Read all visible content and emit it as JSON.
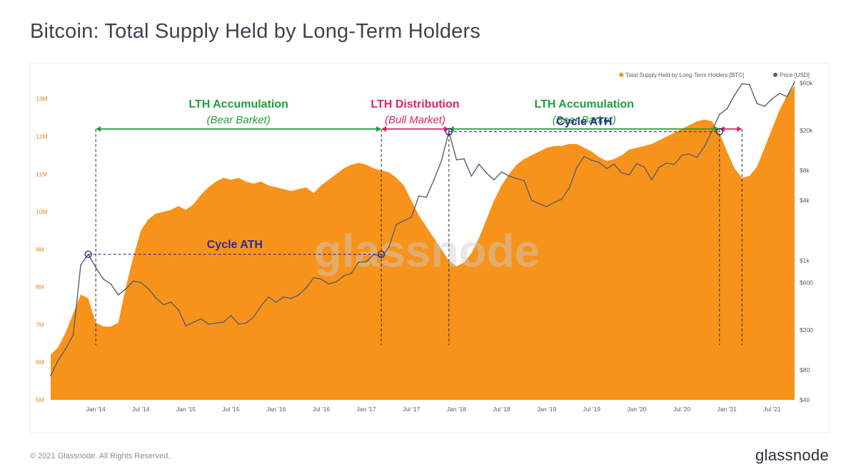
{
  "header": {
    "title": "Bitcoin: Total Supply Held by Long-Term Holders"
  },
  "footer": {
    "copyright": "© 2021 Glassnode. All Rights Reserved.",
    "brand": "glassnode"
  },
  "colors": {
    "lth_fill": "#f7931a",
    "price_line": "#5a5f6a",
    "accumulation": "#1f9e3a",
    "distribution": "#e0245e",
    "ath": "#2b2f8f",
    "watermark": "#c9ccd3"
  },
  "chart_data": {
    "type": "area",
    "watermark": "glassnode",
    "legend": {
      "position": "top-right",
      "items": [
        {
          "label": "Total Supply Held by Long-Term Holders [BTC]",
          "color": "#f7931a"
        },
        {
          "label": "Price [USD]",
          "color": "#5a5f6a"
        }
      ]
    },
    "x_ticks": [
      "Jan '14",
      "Jul '14",
      "Jan '15",
      "Jul '15",
      "Jan '16",
      "Jul '16",
      "Jan '17",
      "Jul '17",
      "Jan '18",
      "Jul '18",
      "Jan '19",
      "Jul '19",
      "Jan '20",
      "Jul '20",
      "Jan '21",
      "Jul '21"
    ],
    "x_range": [
      "2013-07",
      "2021-10"
    ],
    "y_left": {
      "ticks": [
        "5M",
        "6M",
        "7M",
        "8M",
        "9M",
        "10M",
        "11M",
        "12M",
        "13M"
      ],
      "range": [
        5000000,
        13600000
      ]
    },
    "y_right": {
      "scale": "log",
      "ticks": [
        "$40",
        "$80",
        "$200",
        "$600",
        "$1k",
        "$4k",
        "$8k",
        "$20k",
        "$60k"
      ],
      "range": [
        40,
        70000
      ]
    },
    "series": [
      {
        "name": "Total Supply Held by Long-Term Holders [BTC]",
        "unit": "BTC",
        "points": [
          [
            "2013-07",
            6200000
          ],
          [
            "2013-08",
            6400000
          ],
          [
            "2013-09",
            6800000
          ],
          [
            "2013-10",
            7300000
          ],
          [
            "2013-11",
            7800000
          ],
          [
            "2013-12",
            7700000
          ],
          [
            "2014-01",
            7050000
          ],
          [
            "2014-02",
            6950000
          ],
          [
            "2014-03",
            6950000
          ],
          [
            "2014-04",
            7050000
          ],
          [
            "2014-05",
            8000000
          ],
          [
            "2014-06",
            8800000
          ],
          [
            "2014-07",
            9500000
          ],
          [
            "2014-08",
            9800000
          ],
          [
            "2014-09",
            9950000
          ],
          [
            "2014-10",
            10000000
          ],
          [
            "2014-11",
            10050000
          ],
          [
            "2014-12",
            10150000
          ],
          [
            "2015-01",
            10050000
          ],
          [
            "2015-02",
            10200000
          ],
          [
            "2015-03",
            10450000
          ],
          [
            "2015-04",
            10650000
          ],
          [
            "2015-05",
            10800000
          ],
          [
            "2015-06",
            10900000
          ],
          [
            "2015-07",
            10850000
          ],
          [
            "2015-08",
            10900000
          ],
          [
            "2015-09",
            10800000
          ],
          [
            "2015-10",
            10750000
          ],
          [
            "2015-11",
            10800000
          ],
          [
            "2015-12",
            10700000
          ],
          [
            "2016-01",
            10650000
          ],
          [
            "2016-02",
            10600000
          ],
          [
            "2016-03",
            10550000
          ],
          [
            "2016-04",
            10600000
          ],
          [
            "2016-05",
            10650000
          ],
          [
            "2016-06",
            10500000
          ],
          [
            "2016-07",
            10700000
          ],
          [
            "2016-08",
            10850000
          ],
          [
            "2016-09",
            11000000
          ],
          [
            "2016-10",
            11150000
          ],
          [
            "2016-11",
            11250000
          ],
          [
            "2016-12",
            11300000
          ],
          [
            "2017-01",
            11250000
          ],
          [
            "2017-02",
            11150000
          ],
          [
            "2017-03",
            11100000
          ],
          [
            "2017-04",
            11050000
          ],
          [
            "2017-05",
            10900000
          ],
          [
            "2017-06",
            10700000
          ],
          [
            "2017-07",
            10300000
          ],
          [
            "2017-08",
            9900000
          ],
          [
            "2017-09",
            9600000
          ],
          [
            "2017-10",
            9300000
          ],
          [
            "2017-11",
            9000000
          ],
          [
            "2017-12",
            8700000
          ],
          [
            "2018-01",
            8550000
          ],
          [
            "2018-02",
            8650000
          ],
          [
            "2018-03",
            8900000
          ],
          [
            "2018-04",
            9300000
          ],
          [
            "2018-05",
            9800000
          ],
          [
            "2018-06",
            10300000
          ],
          [
            "2018-07",
            10700000
          ],
          [
            "2018-08",
            11000000
          ],
          [
            "2018-09",
            11250000
          ],
          [
            "2018-10",
            11400000
          ],
          [
            "2018-11",
            11500000
          ],
          [
            "2018-12",
            11600000
          ],
          [
            "2019-01",
            11700000
          ],
          [
            "2019-02",
            11750000
          ],
          [
            "2019-03",
            11750000
          ],
          [
            "2019-04",
            11800000
          ],
          [
            "2019-05",
            11800000
          ],
          [
            "2019-06",
            11700000
          ],
          [
            "2019-07",
            11600000
          ],
          [
            "2019-08",
            11450000
          ],
          [
            "2019-09",
            11350000
          ],
          [
            "2019-10",
            11400000
          ],
          [
            "2019-11",
            11500000
          ],
          [
            "2019-12",
            11650000
          ],
          [
            "2020-01",
            11700000
          ],
          [
            "2020-02",
            11750000
          ],
          [
            "2020-03",
            11800000
          ],
          [
            "2020-04",
            11900000
          ],
          [
            "2020-05",
            12000000
          ],
          [
            "2020-06",
            12100000
          ],
          [
            "2020-07",
            12200000
          ],
          [
            "2020-08",
            12300000
          ],
          [
            "2020-09",
            12400000
          ],
          [
            "2020-10",
            12450000
          ],
          [
            "2020-11",
            12400000
          ],
          [
            "2020-12",
            12100000
          ],
          [
            "2021-01",
            11600000
          ],
          [
            "2021-02",
            11150000
          ],
          [
            "2021-03",
            10900000
          ],
          [
            "2021-04",
            10950000
          ],
          [
            "2021-05",
            11200000
          ],
          [
            "2021-06",
            11700000
          ],
          [
            "2021-07",
            12200000
          ],
          [
            "2021-08",
            12700000
          ],
          [
            "2021-09",
            13100000
          ],
          [
            "2021-10",
            13350000
          ]
        ]
      },
      {
        "name": "Price [USD]",
        "unit": "USD",
        "points": [
          [
            "2013-07",
            70
          ],
          [
            "2013-08",
            100
          ],
          [
            "2013-09",
            130
          ],
          [
            "2013-10",
            180
          ],
          [
            "2013-11",
            900
          ],
          [
            "2013-12",
            1150
          ],
          [
            "2014-01",
            850
          ],
          [
            "2014-02",
            650
          ],
          [
            "2014-03",
            580
          ],
          [
            "2014-04",
            450
          ],
          [
            "2014-05",
            520
          ],
          [
            "2014-06",
            620
          ],
          [
            "2014-07",
            600
          ],
          [
            "2014-08",
            520
          ],
          [
            "2014-09",
            420
          ],
          [
            "2014-10",
            360
          ],
          [
            "2014-11",
            380
          ],
          [
            "2014-12",
            320
          ],
          [
            "2015-01",
            220
          ],
          [
            "2015-02",
            240
          ],
          [
            "2015-03",
            260
          ],
          [
            "2015-04",
            230
          ],
          [
            "2015-05",
            235
          ],
          [
            "2015-06",
            240
          ],
          [
            "2015-07",
            280
          ],
          [
            "2015-08",
            230
          ],
          [
            "2015-09",
            235
          ],
          [
            "2015-10",
            270
          ],
          [
            "2015-11",
            350
          ],
          [
            "2015-12",
            430
          ],
          [
            "2016-01",
            380
          ],
          [
            "2016-02",
            430
          ],
          [
            "2016-03",
            415
          ],
          [
            "2016-04",
            450
          ],
          [
            "2016-05",
            530
          ],
          [
            "2016-06",
            670
          ],
          [
            "2016-07",
            650
          ],
          [
            "2016-08",
            580
          ],
          [
            "2016-09",
            610
          ],
          [
            "2016-10",
            700
          ],
          [
            "2016-11",
            740
          ],
          [
            "2016-12",
            960
          ],
          [
            "2017-01",
            970
          ],
          [
            "2017-02",
            1150
          ],
          [
            "2017-03",
            1080
          ],
          [
            "2017-04",
            1350
          ],
          [
            "2017-05",
            2300
          ],
          [
            "2017-06",
            2500
          ],
          [
            "2017-07",
            2700
          ],
          [
            "2017-08",
            4400
          ],
          [
            "2017-09",
            4300
          ],
          [
            "2017-10",
            6400
          ],
          [
            "2017-11",
            9900
          ],
          [
            "2017-12",
            19500
          ],
          [
            "2018-01",
            10200
          ],
          [
            "2018-02",
            10400
          ],
          [
            "2018-03",
            7000
          ],
          [
            "2018-04",
            9200
          ],
          [
            "2018-05",
            7500
          ],
          [
            "2018-06",
            6400
          ],
          [
            "2018-07",
            7700
          ],
          [
            "2018-08",
            7000
          ],
          [
            "2018-09",
            6600
          ],
          [
            "2018-10",
            6300
          ],
          [
            "2018-11",
            4000
          ],
          [
            "2018-12",
            3700
          ],
          [
            "2019-01",
            3450
          ],
          [
            "2019-02",
            3800
          ],
          [
            "2019-03",
            4100
          ],
          [
            "2019-04",
            5300
          ],
          [
            "2019-05",
            8500
          ],
          [
            "2019-06",
            11000
          ],
          [
            "2019-07",
            10100
          ],
          [
            "2019-08",
            9600
          ],
          [
            "2019-09",
            8300
          ],
          [
            "2019-10",
            9200
          ],
          [
            "2019-11",
            7500
          ],
          [
            "2019-12",
            7200
          ],
          [
            "2020-01",
            9350
          ],
          [
            "2020-02",
            8600
          ],
          [
            "2020-03",
            6400
          ],
          [
            "2020-04",
            8600
          ],
          [
            "2020-05",
            9450
          ],
          [
            "2020-06",
            9150
          ],
          [
            "2020-07",
            11300
          ],
          [
            "2020-08",
            11650
          ],
          [
            "2020-09",
            10800
          ],
          [
            "2020-10",
            13800
          ],
          [
            "2020-11",
            19700
          ],
          [
            "2020-12",
            29000
          ],
          [
            "2021-01",
            33100
          ],
          [
            "2021-02",
            45200
          ],
          [
            "2021-03",
            58800
          ],
          [
            "2021-04",
            57800
          ],
          [
            "2021-05",
            37300
          ],
          [
            "2021-06",
            35000
          ],
          [
            "2021-07",
            41500
          ],
          [
            "2021-08",
            47100
          ],
          [
            "2021-09",
            43800
          ],
          [
            "2021-10",
            61300
          ]
        ]
      }
    ],
    "annotations": [
      {
        "type": "range",
        "label": "LTH Accumulation",
        "sublabel": "(Bear Barket)",
        "from": "2014-01",
        "to": "2017-03",
        "color": "#1f9e3a"
      },
      {
        "type": "range",
        "label": "LTH Distribution",
        "sublabel": "(Bull Market)",
        "from": "2017-03",
        "to": "2017-12",
        "color": "#e0245e"
      },
      {
        "type": "range",
        "label": "LTH Accumulation",
        "sublabel": "(Bear Barket)",
        "from": "2017-12",
        "to": "2020-12",
        "color": "#1f9e3a"
      },
      {
        "type": "range",
        "label": "",
        "sublabel": "",
        "from": "2020-12",
        "to": "2021-03",
        "color": "#e0245e"
      },
      {
        "type": "ath",
        "label": "Cycle ATH",
        "from": "2013-12",
        "to": "2017-03",
        "price": 1150,
        "color": "#2b2f8f"
      },
      {
        "type": "ath",
        "label": "Cycle ATH",
        "from": "2017-12",
        "to": "2020-12",
        "price": 19500,
        "color": "#2b2f8f"
      }
    ]
  }
}
